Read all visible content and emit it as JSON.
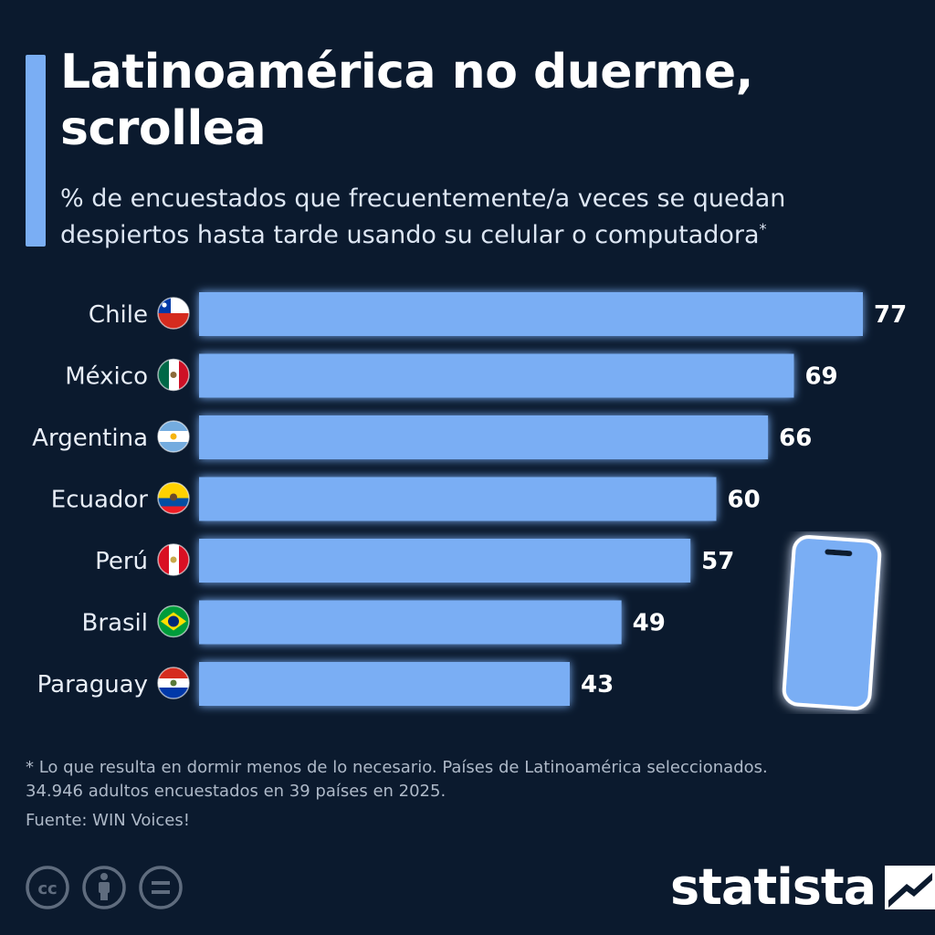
{
  "header": {
    "title": "Latinoamérica no duerme, scrollea",
    "subtitle": "% de encuestados que frecuentemente/a veces se quedan despiertos hasta tarde usando su celular o computadora",
    "subtitle_mark": "*"
  },
  "chart_data": {
    "type": "bar",
    "orientation": "horizontal",
    "title": "Latinoamérica no duerme, scrollea",
    "categories": [
      "Chile",
      "México",
      "Argentina",
      "Ecuador",
      "Perú",
      "Brasil",
      "Paraguay"
    ],
    "values": [
      77,
      69,
      66,
      60,
      57,
      49,
      43
    ],
    "flag_icons": [
      "chile-flag-icon",
      "mexico-flag-icon",
      "argentina-flag-icon",
      "ecuador-flag-icon",
      "peru-flag-icon",
      "brasil-flag-icon",
      "paraguay-flag-icon"
    ],
    "xlim": [
      0,
      77
    ],
    "grid": false,
    "bar_color": "#7aaef4"
  },
  "footer": {
    "note_line1": "* Lo que resulta en dormir menos de lo necesario. Países de Latinoamérica seleccionados.",
    "note_line2": "34.946 adultos encuestados en 39 países en 2025.",
    "source": "Fuente: WIN Voices!",
    "brand": "statista",
    "license_icons": [
      "cc-icon",
      "attribution-icon",
      "no-derivatives-icon"
    ]
  },
  "colors": {
    "background": "#0b1a2e",
    "accent": "#7aaef4",
    "text": "#ffffff",
    "muted": "#aeb9c8"
  }
}
